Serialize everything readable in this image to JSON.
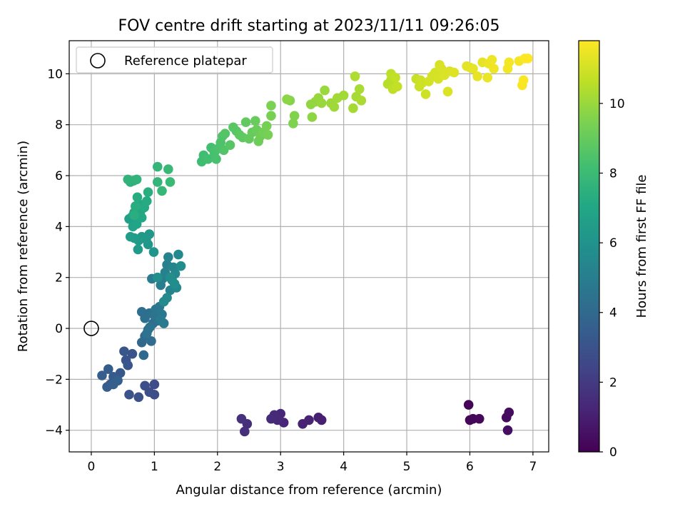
{
  "chart_data": {
    "type": "scatter",
    "title": "FOV centre drift starting at 2023/11/11 09:26:05",
    "xlabel": "Angular distance from reference (arcmin)",
    "ylabel": "Rotation from reference (arcmin)",
    "xlim": [
      -0.35,
      7.25
    ],
    "ylim": [
      -4.85,
      11.3
    ],
    "xticks": [
      "0",
      "1",
      "2",
      "3",
      "4",
      "5",
      "6",
      "7"
    ],
    "yticks": [
      "−4",
      "−2",
      "0",
      "2",
      "4",
      "6",
      "8",
      "10"
    ],
    "grid": true,
    "legend": {
      "placement": "top-left",
      "entries": [
        "Reference platepar"
      ]
    },
    "reference_point": {
      "x": 0,
      "y": 0,
      "label": "Reference platepar"
    },
    "colorbar": {
      "label": "Hours from first FF file",
      "min": 0,
      "max": 11.8,
      "ticks": [
        "0",
        "2",
        "4",
        "6",
        "8",
        "10"
      ],
      "colormap": "viridis"
    },
    "point_fields": [
      "x",
      "y",
      "hours"
    ],
    "points": [
      [
        5.98,
        -3.0,
        0.1
      ],
      [
        6.0,
        -3.6,
        0.15
      ],
      [
        6.05,
        -3.55,
        0.2
      ],
      [
        6.15,
        -3.55,
        0.25
      ],
      [
        6.58,
        -3.5,
        0.35
      ],
      [
        6.62,
        -3.3,
        0.4
      ],
      [
        6.6,
        -4.0,
        0.45
      ],
      [
        3.6,
        -3.5,
        1.0
      ],
      [
        3.65,
        -3.6,
        1.05
      ],
      [
        3.45,
        -3.6,
        1.1
      ],
      [
        3.35,
        -3.75,
        1.15
      ],
      [
        3.05,
        -3.7,
        1.2
      ],
      [
        3.0,
        -3.35,
        1.3
      ],
      [
        2.95,
        -3.6,
        1.35
      ],
      [
        2.9,
        -3.4,
        1.4
      ],
      [
        2.85,
        -3.55,
        1.45
      ],
      [
        2.47,
        -3.75,
        1.55
      ],
      [
        2.43,
        -4.05,
        1.6
      ],
      [
        2.38,
        -3.55,
        1.65
      ],
      [
        1.0,
        -2.2,
        2.7
      ],
      [
        1.0,
        -2.6,
        2.75
      ],
      [
        0.92,
        -2.5,
        2.8
      ],
      [
        0.85,
        -2.25,
        2.85
      ],
      [
        0.75,
        -2.7,
        2.9
      ],
      [
        0.6,
        -2.6,
        2.95
      ],
      [
        0.65,
        -1.0,
        3.0
      ],
      [
        0.55,
        -1.25,
        3.05
      ],
      [
        0.58,
        -1.45,
        3.1
      ],
      [
        0.52,
        -0.9,
        3.15
      ],
      [
        0.46,
        -1.75,
        3.2
      ],
      [
        0.4,
        -2.0,
        3.25
      ],
      [
        0.35,
        -1.9,
        3.3
      ],
      [
        0.3,
        -2.2,
        3.35
      ],
      [
        0.27,
        -1.6,
        3.4
      ],
      [
        0.25,
        -2.3,
        3.45
      ],
      [
        0.17,
        -1.85,
        3.5
      ],
      [
        0.35,
        -2.2,
        3.55
      ],
      [
        0.42,
        -2.05,
        3.6
      ],
      [
        0.83,
        -1.05,
        3.95
      ],
      [
        0.8,
        -0.55,
        4.0
      ],
      [
        0.85,
        -0.3,
        4.05
      ],
      [
        0.9,
        -0.05,
        4.1
      ],
      [
        0.95,
        -0.5,
        4.15
      ],
      [
        0.98,
        0.2,
        4.2
      ],
      [
        0.8,
        0.65,
        4.25
      ],
      [
        0.85,
        0.4,
        4.3
      ],
      [
        0.92,
        0.6,
        4.35
      ],
      [
        1.05,
        0.3,
        4.4
      ],
      [
        0.88,
        -0.2,
        4.45
      ],
      [
        0.93,
        0.05,
        4.5
      ],
      [
        1.0,
        0.5,
        4.55
      ],
      [
        1.02,
        0.75,
        4.6
      ],
      [
        1.08,
        0.85,
        4.65
      ],
      [
        1.12,
        0.55,
        4.7
      ],
      [
        1.15,
        0.2,
        4.75
      ],
      [
        1.1,
        0.35,
        4.8
      ],
      [
        0.96,
        1.95,
        4.85
      ],
      [
        1.1,
        1.7,
        5.0
      ],
      [
        1.13,
        1.95,
        5.05
      ],
      [
        1.17,
        2.2,
        5.1
      ],
      [
        1.2,
        2.5,
        5.15
      ],
      [
        1.22,
        2.8,
        5.2
      ],
      [
        1.25,
        1.5,
        5.25
      ],
      [
        1.28,
        1.9,
        5.3
      ],
      [
        1.3,
        2.4,
        5.35
      ],
      [
        1.33,
        2.15,
        5.4
      ],
      [
        1.35,
        1.6,
        5.45
      ],
      [
        1.38,
        2.9,
        5.5
      ],
      [
        1.2,
        1.2,
        5.55
      ],
      [
        1.15,
        1.05,
        5.6
      ],
      [
        1.42,
        2.45,
        5.65
      ],
      [
        1.25,
        2.0,
        5.7
      ],
      [
        1.32,
        1.75,
        5.75
      ],
      [
        1.05,
        2.0,
        5.8
      ],
      [
        0.99,
        3.0,
        6.1
      ],
      [
        0.9,
        3.3,
        6.15
      ],
      [
        0.92,
        3.7,
        6.2
      ],
      [
        0.87,
        3.5,
        6.25
      ],
      [
        0.8,
        3.6,
        6.3
      ],
      [
        0.75,
        3.45,
        6.35
      ],
      [
        0.74,
        3.1,
        6.4
      ],
      [
        0.68,
        3.55,
        6.45
      ],
      [
        0.62,
        3.6,
        6.5
      ],
      [
        0.6,
        4.3,
        6.6
      ],
      [
        0.65,
        4.4,
        6.65
      ],
      [
        0.72,
        4.25,
        6.7
      ],
      [
        0.68,
        4.55,
        6.75
      ],
      [
        0.66,
        4.0,
        6.8
      ],
      [
        0.72,
        4.1,
        6.85
      ],
      [
        0.75,
        4.9,
        7.0
      ],
      [
        0.78,
        4.6,
        7.05
      ],
      [
        0.8,
        4.35,
        7.1
      ],
      [
        0.84,
        4.75,
        7.15
      ],
      [
        0.88,
        5.0,
        7.2
      ],
      [
        0.73,
        5.15,
        7.25
      ],
      [
        0.7,
        4.8,
        7.3
      ],
      [
        0.68,
        4.45,
        7.35
      ],
      [
        0.9,
        5.35,
        7.4
      ],
      [
        0.62,
        5.75,
        7.5
      ],
      [
        0.67,
        5.8,
        7.55
      ],
      [
        0.58,
        5.85,
        7.6
      ],
      [
        0.72,
        5.85,
        7.65
      ],
      [
        1.05,
        5.75,
        7.7
      ],
      [
        1.05,
        6.35,
        7.75
      ],
      [
        1.12,
        5.4,
        7.8
      ],
      [
        1.22,
        6.25,
        7.85
      ],
      [
        1.25,
        5.75,
        7.9
      ],
      [
        1.75,
        6.55,
        8.1
      ],
      [
        1.78,
        6.8,
        8.15
      ],
      [
        1.85,
        6.65,
        8.2
      ],
      [
        1.9,
        7.1,
        8.25
      ],
      [
        1.95,
        6.9,
        8.3
      ],
      [
        1.98,
        6.65,
        8.35
      ],
      [
        2.0,
        7.05,
        8.4
      ],
      [
        2.05,
        7.3,
        8.45
      ],
      [
        2.08,
        7.55,
        8.5
      ],
      [
        2.1,
        7.0,
        8.55
      ],
      [
        2.12,
        7.65,
        8.6
      ],
      [
        2.2,
        7.2,
        8.65
      ],
      [
        2.25,
        7.9,
        8.7
      ],
      [
        2.3,
        7.75,
        8.75
      ],
      [
        2.35,
        7.6,
        8.8
      ],
      [
        2.4,
        7.5,
        8.85
      ],
      [
        2.45,
        8.1,
        8.9
      ],
      [
        2.5,
        7.45,
        8.95
      ],
      [
        2.55,
        7.7,
        9.0
      ],
      [
        2.6,
        8.15,
        9.05
      ],
      [
        2.62,
        7.8,
        9.1
      ],
      [
        2.65,
        7.35,
        9.15
      ],
      [
        2.68,
        7.55,
        9.2
      ],
      [
        2.72,
        7.7,
        9.25
      ],
      [
        2.78,
        7.95,
        9.3
      ],
      [
        2.8,
        7.6,
        9.35
      ],
      [
        2.85,
        8.35,
        9.4
      ],
      [
        2.85,
        8.75,
        9.45
      ],
      [
        3.2,
        8.05,
        9.5
      ],
      [
        3.22,
        8.35,
        9.55
      ],
      [
        3.15,
        8.95,
        9.6
      ],
      [
        3.1,
        9.0,
        9.75
      ],
      [
        3.5,
        8.3,
        9.8
      ],
      [
        3.48,
        8.8,
        9.85
      ],
      [
        3.55,
        8.9,
        9.9
      ],
      [
        3.6,
        9.05,
        9.95
      ],
      [
        3.65,
        8.85,
        9.98
      ],
      [
        3.7,
        9.35,
        10.0
      ],
      [
        3.8,
        8.85,
        10.05
      ],
      [
        3.85,
        8.7,
        10.1
      ],
      [
        3.9,
        9.05,
        10.12
      ],
      [
        4.0,
        9.15,
        10.15
      ],
      [
        4.15,
        8.65,
        10.2
      ],
      [
        4.2,
        9.1,
        10.22
      ],
      [
        4.25,
        9.4,
        10.25
      ],
      [
        4.28,
        8.95,
        10.3
      ],
      [
        4.18,
        9.9,
        10.35
      ],
      [
        4.7,
        9.6,
        10.5
      ],
      [
        4.75,
        9.75,
        10.55
      ],
      [
        4.75,
        10.0,
        10.6
      ],
      [
        4.78,
        9.4,
        10.65
      ],
      [
        4.82,
        9.85,
        10.7
      ],
      [
        4.85,
        9.5,
        10.75
      ],
      [
        5.15,
        9.8,
        10.8
      ],
      [
        5.2,
        9.5,
        10.85
      ],
      [
        5.22,
        9.75,
        10.9
      ],
      [
        5.25,
        9.65,
        10.92
      ],
      [
        5.3,
        9.2,
        10.95
      ],
      [
        5.35,
        9.7,
        11.0
      ],
      [
        5.4,
        9.9,
        11.02
      ],
      [
        5.45,
        10.05,
        11.05
      ],
      [
        5.5,
        9.8,
        11.08
      ],
      [
        5.52,
        10.35,
        11.1
      ],
      [
        5.55,
        10.2,
        11.12
      ],
      [
        5.6,
        9.95,
        11.15
      ],
      [
        5.65,
        9.3,
        11.18
      ],
      [
        5.68,
        10.1,
        11.2
      ],
      [
        5.75,
        10.05,
        11.22
      ],
      [
        5.95,
        10.3,
        11.3
      ],
      [
        6.0,
        10.25,
        11.32
      ],
      [
        6.05,
        10.2,
        11.35
      ],
      [
        6.12,
        9.9,
        11.38
      ],
      [
        6.2,
        10.45,
        11.4
      ],
      [
        6.28,
        9.85,
        11.45
      ],
      [
        6.3,
        10.4,
        11.48
      ],
      [
        6.35,
        10.55,
        11.5
      ],
      [
        6.38,
        10.2,
        11.55
      ],
      [
        6.6,
        10.2,
        11.6
      ],
      [
        6.62,
        10.45,
        11.62
      ],
      [
        6.78,
        10.5,
        11.65
      ],
      [
        6.83,
        9.55,
        11.7
      ],
      [
        6.85,
        9.75,
        11.72
      ],
      [
        6.87,
        10.6,
        11.75
      ],
      [
        6.92,
        10.6,
        11.8
      ]
    ]
  }
}
